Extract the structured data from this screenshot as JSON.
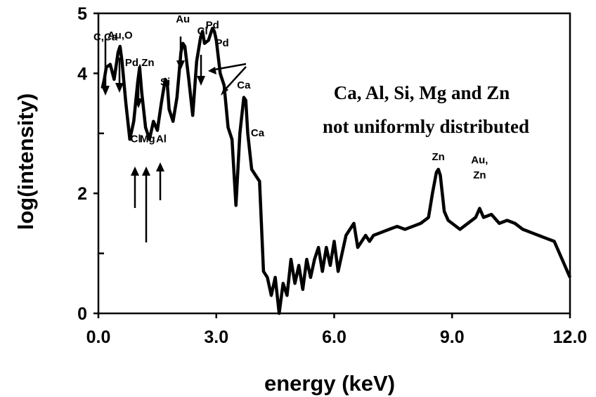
{
  "chart_data": {
    "type": "line",
    "title": "",
    "xlabel": "energy (keV)",
    "ylabel": "log(intensity)",
    "xlim": [
      0,
      12
    ],
    "ylim": [
      0,
      5
    ],
    "x_ticks": [
      {
        "value": 0,
        "label": "0.0"
      },
      {
        "value": 3,
        "label": "3.0"
      },
      {
        "value": 6,
        "label": "6.0"
      },
      {
        "value": 9,
        "label": "9.0"
      },
      {
        "value": 12,
        "label": "12.0"
      }
    ],
    "y_ticks": [
      {
        "value": 0,
        "label": "0"
      },
      {
        "value": 2,
        "label": "2"
      },
      {
        "value": 4,
        "label": "4"
      },
      {
        "value": 5,
        "label": "5"
      }
    ],
    "y_minor_ticks": [
      1,
      3
    ],
    "grid": false,
    "annotation": [
      "Ca, Al, Si, Mg and Zn",
      "not uniformly distributed"
    ],
    "series": [
      {
        "x": [
          0.1,
          0.15,
          0.2,
          0.3,
          0.4,
          0.5,
          0.55,
          0.6,
          0.7,
          0.8,
          0.9,
          1.0,
          1.05,
          1.1,
          1.2,
          1.3,
          1.4,
          1.5,
          1.6,
          1.7,
          1.75,
          1.8,
          1.9,
          2.0,
          2.1,
          2.15,
          2.2,
          2.3,
          2.4,
          2.5,
          2.6,
          2.65,
          2.7,
          2.8,
          2.9,
          2.95,
          3.0,
          3.1,
          3.2,
          3.3,
          3.4,
          3.5,
          3.6,
          3.7,
          3.75,
          3.8,
          3.9,
          4.0,
          4.1,
          4.2,
          4.3,
          4.4,
          4.5,
          4.6,
          4.7,
          4.8,
          4.9,
          5.0,
          5.1,
          5.2,
          5.3,
          5.4,
          5.5,
          5.6,
          5.7,
          5.8,
          5.9,
          6.0,
          6.1,
          6.2,
          6.3,
          6.4,
          6.5,
          6.6,
          6.7,
          6.8,
          6.9,
          7.0,
          7.2,
          7.4,
          7.6,
          7.8,
          8.0,
          8.2,
          8.4,
          8.5,
          8.6,
          8.65,
          8.7,
          8.8,
          8.9,
          9.0,
          9.2,
          9.4,
          9.6,
          9.7,
          9.8,
          10.0,
          10.2,
          10.4,
          10.6,
          10.8,
          11.0,
          11.2,
          11.4,
          11.6,
          11.8,
          12.0
        ],
        "y": [
          3.75,
          3.9,
          4.1,
          4.15,
          3.9,
          4.35,
          4.45,
          4.2,
          3.5,
          2.9,
          3.2,
          3.85,
          4.1,
          3.7,
          3.1,
          2.9,
          3.2,
          3.05,
          3.5,
          3.9,
          3.85,
          3.4,
          3.2,
          3.6,
          4.35,
          4.5,
          4.45,
          3.9,
          3.3,
          4.2,
          4.6,
          4.7,
          4.5,
          4.55,
          4.75,
          4.7,
          4.55,
          4.0,
          3.8,
          3.1,
          2.9,
          1.8,
          3.0,
          3.6,
          3.55,
          3.0,
          2.4,
          2.3,
          2.2,
          0.7,
          0.6,
          0.3,
          0.6,
          0.0,
          0.5,
          0.3,
          0.9,
          0.5,
          0.8,
          0.4,
          0.9,
          0.6,
          0.9,
          1.1,
          0.7,
          1.1,
          0.8,
          1.2,
          0.7,
          1.0,
          1.3,
          1.4,
          1.5,
          1.1,
          1.2,
          1.3,
          1.2,
          1.3,
          1.35,
          1.4,
          1.45,
          1.4,
          1.45,
          1.5,
          1.6,
          2.0,
          2.35,
          2.4,
          2.3,
          1.7,
          1.55,
          1.5,
          1.4,
          1.5,
          1.6,
          1.75,
          1.6,
          1.65,
          1.5,
          1.55,
          1.5,
          1.4,
          1.35,
          1.3,
          1.25,
          1.2,
          0.9,
          0.6
        ]
      }
    ],
    "peak_labels": [
      {
        "text": "C,Ca",
        "x": 0.18,
        "y": 4.55
      },
      {
        "text": "Au,O",
        "x": 0.55,
        "y": 4.58
      },
      {
        "text": "Pd,Zn",
        "x": 1.05,
        "y": 4.12
      },
      {
        "text": "Si",
        "x": 1.7,
        "y": 3.8
      },
      {
        "text": "Au",
        "x": 2.15,
        "y": 4.85
      },
      {
        "text": "Cl",
        "x": 2.65,
        "y": 4.65
      },
      {
        "text": "Pd",
        "x": 2.9,
        "y": 4.75
      },
      {
        "text": "Pd",
        "x": 3.15,
        "y": 4.45
      },
      {
        "text": "Ca",
        "x": 3.7,
        "y": 3.75
      },
      {
        "text": "Ca",
        "x": 4.05,
        "y": 2.95
      },
      {
        "text": "Cl",
        "x": 0.95,
        "y": 2.85
      },
      {
        "text": "Mg",
        "x": 1.25,
        "y": 2.85
      },
      {
        "text": "Al",
        "x": 1.6,
        "y": 2.85
      },
      {
        "text": "Zn",
        "x": 8.65,
        "y": 2.55
      },
      {
        "text": "Au,",
        "x": 9.7,
        "y": 2.5
      },
      {
        "text": "Zn",
        "x": 9.7,
        "y": 2.25
      }
    ]
  }
}
